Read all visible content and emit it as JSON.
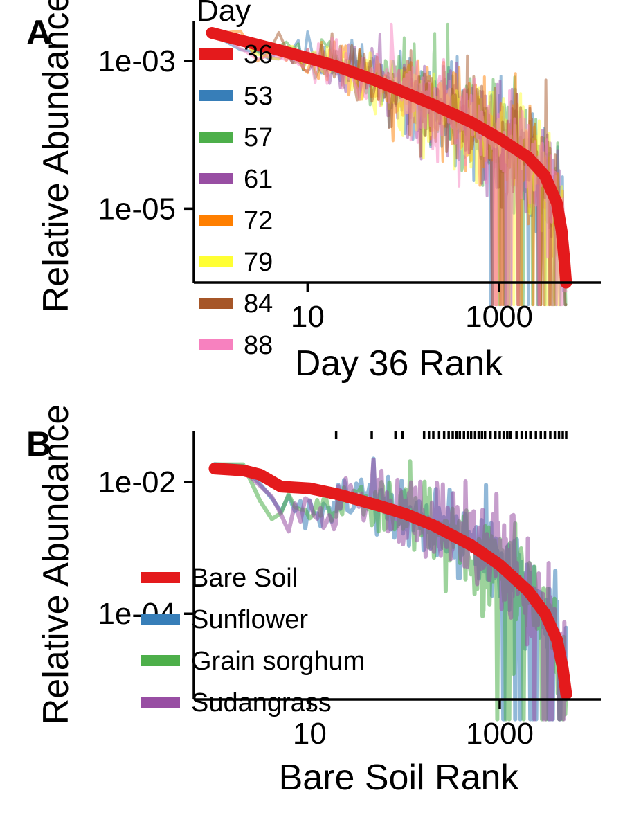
{
  "chart_data": [
    {
      "type": "line",
      "panel_label": "A",
      "xlabel": "Day 36 Rank",
      "ylabel": "Relative Abundance",
      "x_scale": "log",
      "y_scale": "log",
      "xlim": [
        1,
        8000
      ],
      "ylim": [
        1e-06,
        0.0035
      ],
      "xticks": [
        {
          "value": 10,
          "label": "10"
        },
        {
          "value": 1000,
          "label": "1000"
        }
      ],
      "yticks": [
        {
          "value": 0.001,
          "label": "1e-03"
        },
        {
          "value": 1e-05,
          "label": "1e-05"
        }
      ],
      "legend": {
        "title": "Day",
        "placement": "top-left"
      },
      "reference_series": "36",
      "n_ranks": 5000,
      "series": [
        {
          "name": "36",
          "color": "#E41A1C",
          "values": {
            "rank": [
              1,
              2,
              5,
              10,
              20,
              50,
              100,
              200,
              500,
              1000,
              2000,
              3000,
              4000,
              4500,
              4800,
              5000
            ],
            "abundance": [
              0.0024,
              0.0019,
              0.0014,
              0.0011,
              0.00085,
              0.00055,
              0.00038,
              0.00026,
              0.00015,
              9e-05,
              5e-05,
              2.8e-05,
              1.2e-05,
              5e-06,
              2e-06,
              1e-06
            ]
          }
        },
        {
          "name": "53",
          "color": "#377EB8"
        },
        {
          "name": "57",
          "color": "#4DAF4A"
        },
        {
          "name": "61",
          "color": "#984EA3"
        },
        {
          "name": "72",
          "color": "#FF7F00"
        },
        {
          "name": "79",
          "color": "#FFFF33"
        },
        {
          "name": "84",
          "color": "#A65628"
        },
        {
          "name": "88",
          "color": "#F781BF"
        }
      ]
    },
    {
      "type": "line",
      "panel_label": "B",
      "xlabel": "Bare Soil Rank",
      "ylabel": "Relative Abundance",
      "x_scale": "log",
      "y_scale": "log",
      "xlim": [
        1,
        8000
      ],
      "ylim": [
        5e-06,
        0.06
      ],
      "xticks": [
        {
          "value": 10,
          "label": "10"
        },
        {
          "value": 1000,
          "label": "1000"
        }
      ],
      "yticks": [
        {
          "value": 0.01,
          "label": "1e-02"
        },
        {
          "value": 0.0001,
          "label": "1e-04"
        }
      ],
      "legend": {
        "placement": "bottom-left"
      },
      "reference_series": "Bare Soil",
      "n_ranks": 5000,
      "rug_ranks": [
        19,
        45,
        80,
        95,
        160,
        180,
        200,
        230,
        260,
        290,
        320,
        350,
        380,
        420,
        460,
        500,
        550,
        600,
        650,
        700,
        800,
        900,
        1000,
        1100,
        1200,
        1300,
        1500,
        1700,
        1900,
        2100,
        2400,
        2700,
        3000,
        3400,
        3800,
        4200,
        4600,
        5000
      ],
      "series": [
        {
          "name": "Bare Soil",
          "color": "#E41A1C",
          "values": {
            "rank": [
              1,
              2,
              3,
              5,
              10,
              20,
              50,
              100,
              200,
              500,
              1000,
              2000,
              3000,
              4000,
              4600,
              5000
            ],
            "abundance": [
              0.016,
              0.015,
              0.013,
              0.0085,
              0.008,
              0.0065,
              0.0045,
              0.0033,
              0.0022,
              0.0011,
              0.00055,
              0.00022,
              0.0001,
              4e-05,
              1.5e-05,
              6e-06
            ]
          }
        },
        {
          "name": "Sunflower",
          "color": "#377EB8"
        },
        {
          "name": "Grain sorghum",
          "color": "#4DAF4A"
        },
        {
          "name": "Sudangrass",
          "color": "#984EA3"
        }
      ]
    }
  ]
}
